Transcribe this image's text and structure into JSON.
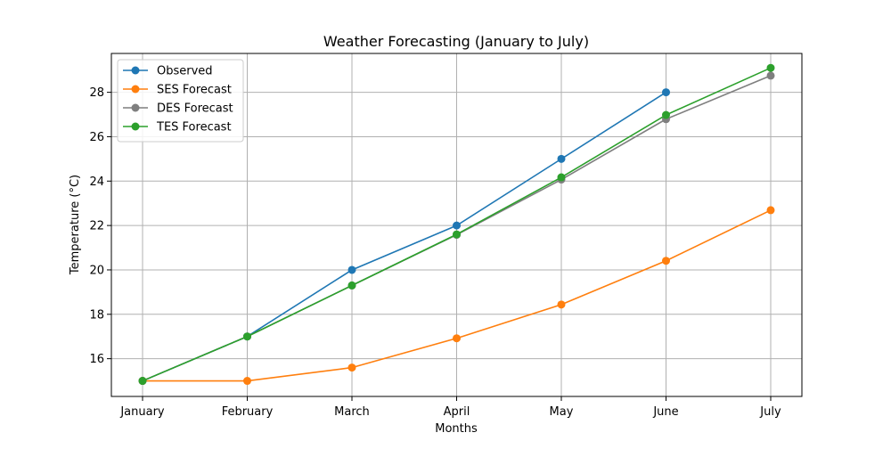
{
  "chart_data": {
    "type": "line",
    "title": "Weather Forecasting (January to July)",
    "xlabel": "Months",
    "ylabel": "Temperature (°C)",
    "categories": [
      "January",
      "February",
      "March",
      "April",
      "May",
      "June",
      "July"
    ],
    "ylim": [
      14.3,
      29.75
    ],
    "yticks": [
      16,
      18,
      20,
      22,
      24,
      26,
      28
    ],
    "grid": true,
    "legend_position": "top-left",
    "series": [
      {
        "name": "Observed",
        "color": "#1f77b4",
        "marker": "circle",
        "values": [
          15,
          17,
          20,
          22,
          25,
          28,
          null
        ]
      },
      {
        "name": "SES Forecast",
        "color": "#ff7f0e",
        "marker": "circle",
        "values": [
          15,
          15,
          15.6,
          16.92,
          18.44,
          20.41,
          22.69
        ]
      },
      {
        "name": "DES Forecast",
        "color": "#7f7f7f",
        "marker": "circle",
        "values": [
          15,
          17,
          19.3,
          21.58,
          24.07,
          26.79,
          28.75
        ]
      },
      {
        "name": "TES Forecast",
        "color": "#2ca02c",
        "marker": "circle",
        "values": [
          15,
          17,
          19.3,
          21.6,
          24.17,
          26.98,
          29.1
        ]
      }
    ]
  }
}
